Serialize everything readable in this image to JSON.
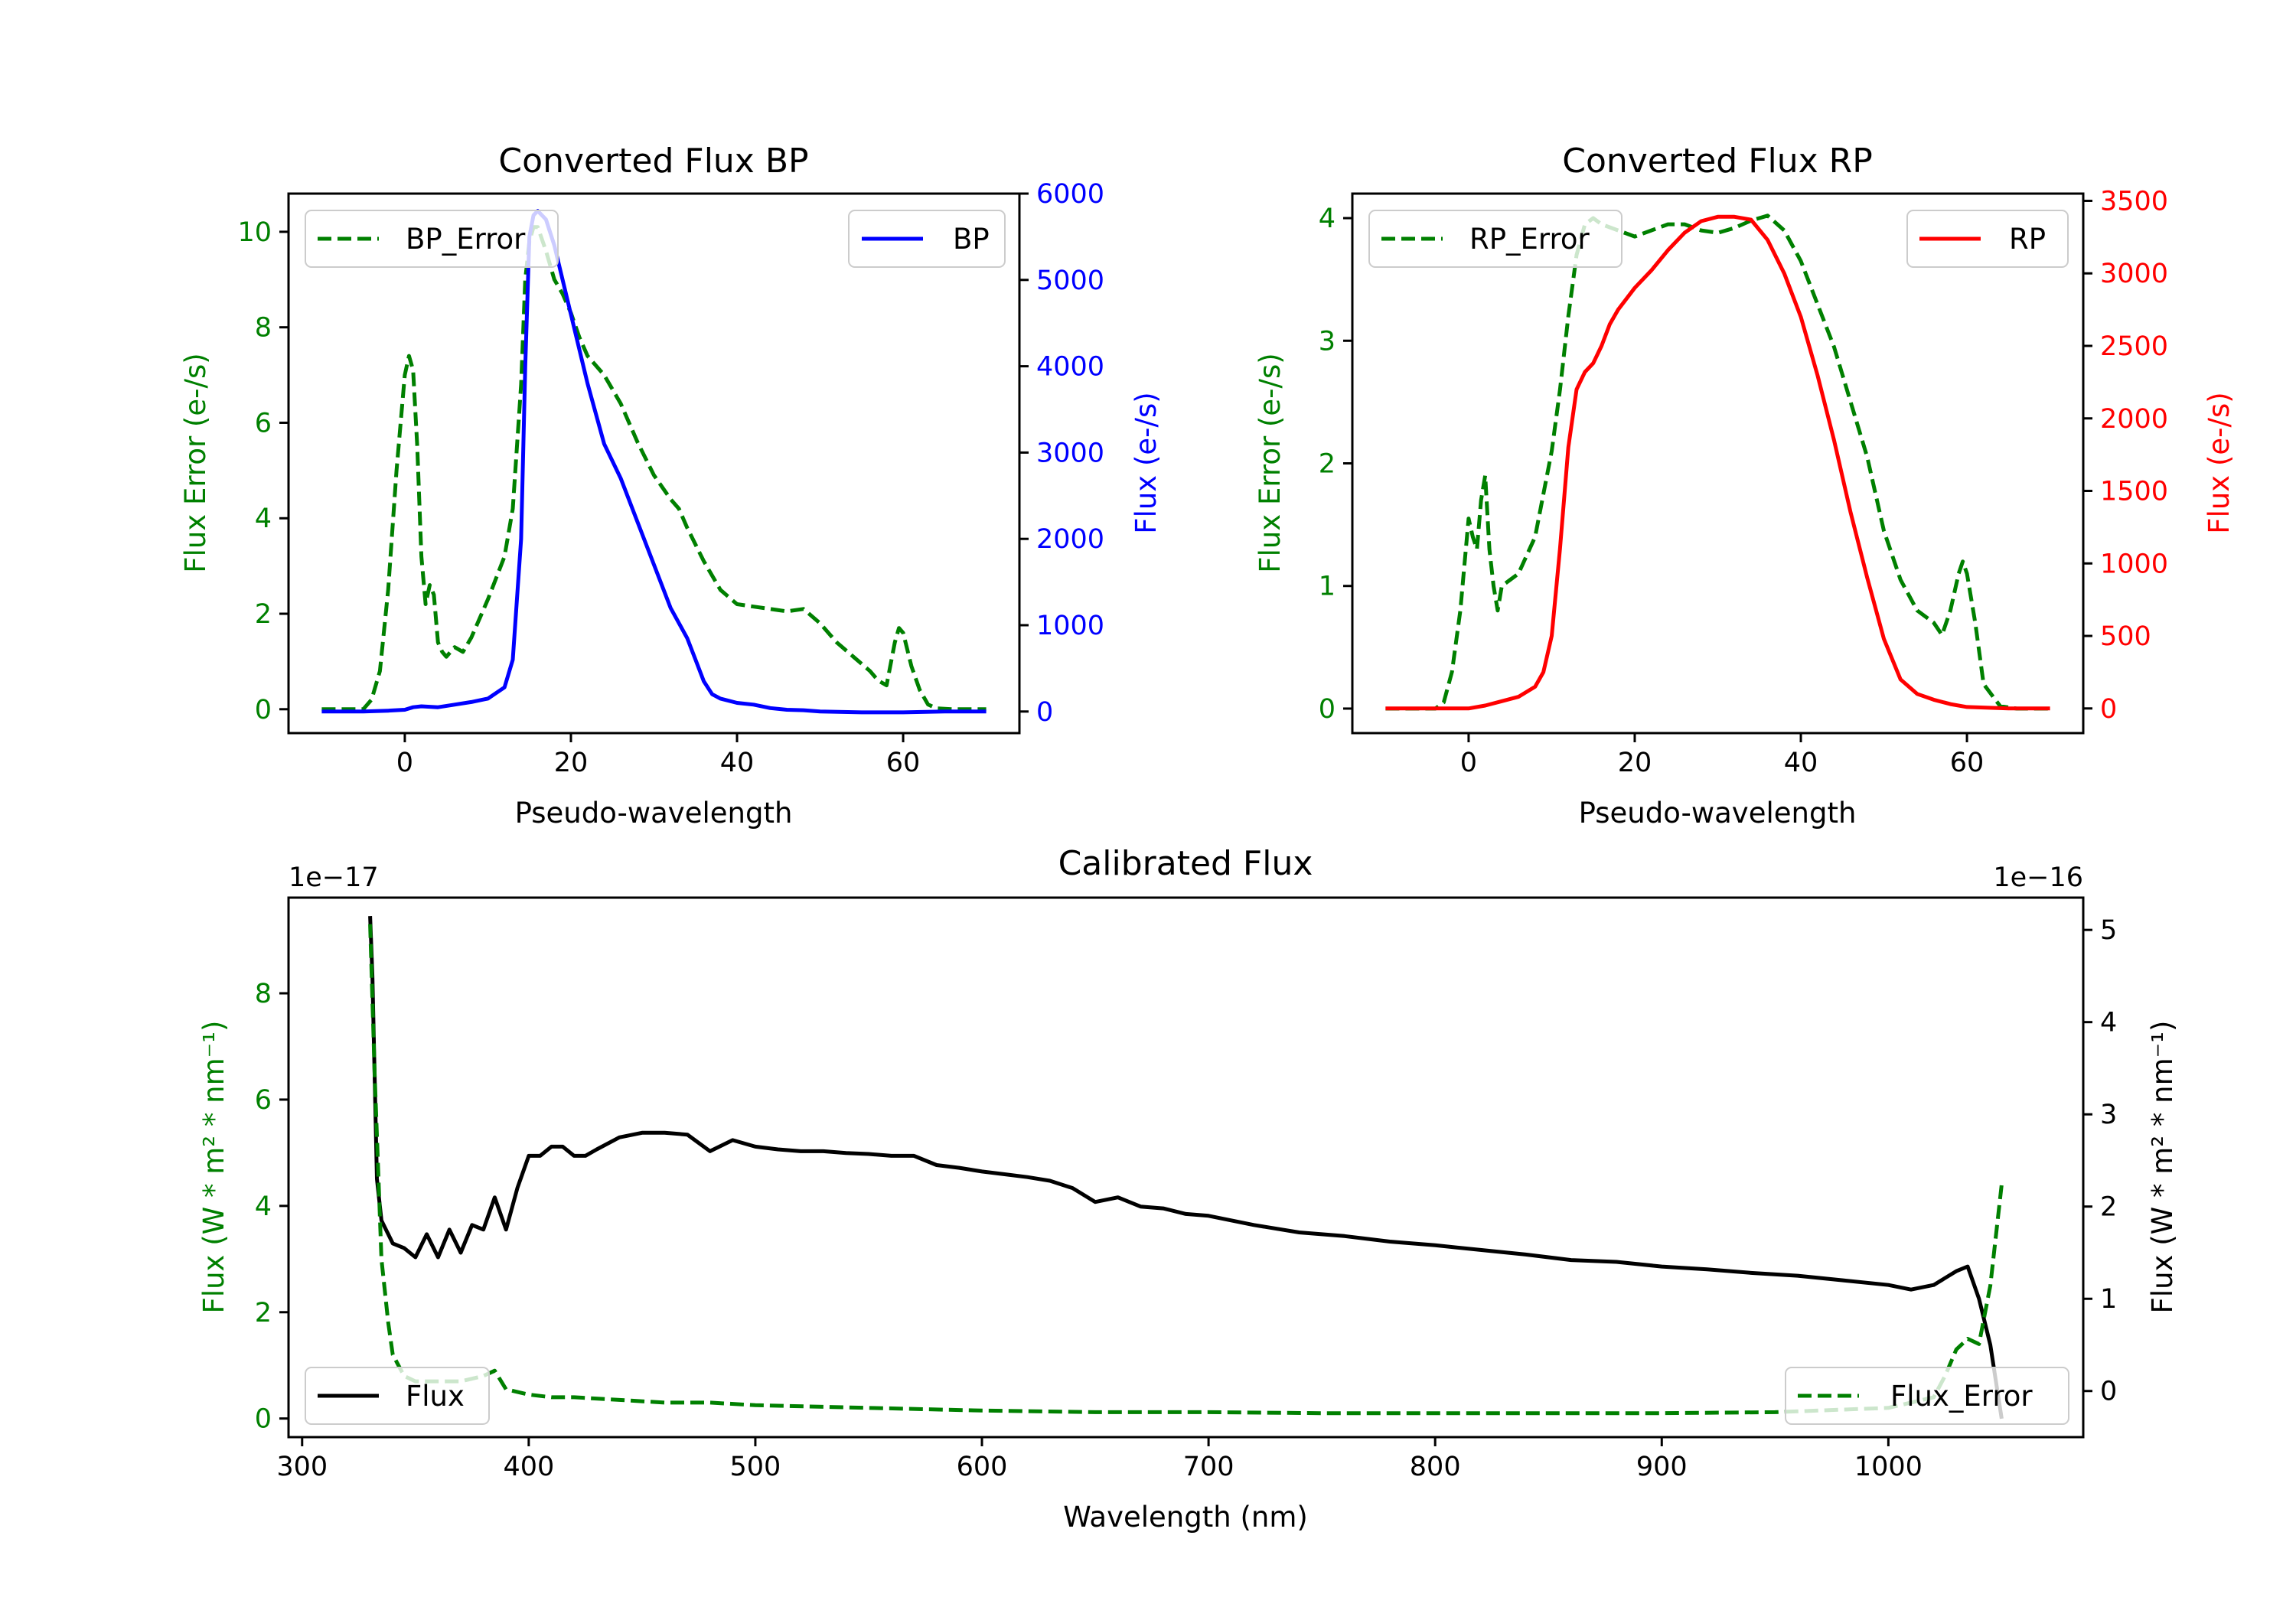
{
  "colors": {
    "error": "#008000",
    "bp": "#0000ff",
    "rp": "#ff0000",
    "flux": "#000000"
  },
  "chart_data": [
    {
      "id": "bp",
      "type": "line",
      "title": "Converted Flux BP",
      "xlabel": "Pseudo-wavelength",
      "ylabel_left": "Flux Error (e-/s)",
      "ylabel_right": "Flux (e-/s)",
      "xlim": [
        -14,
        74
      ],
      "ylim_left": [
        -0.5,
        10.8
      ],
      "ylim_right": [
        -250,
        6000
      ],
      "xticks": [
        0,
        20,
        40,
        60
      ],
      "yticks_left": [
        0,
        2,
        4,
        6,
        8,
        10
      ],
      "yticks_right": [
        0,
        1000,
        2000,
        3000,
        4000,
        5000,
        6000
      ],
      "legend_left": "BP_Error",
      "legend_right": "BP",
      "series": [
        {
          "name": "BP_Error",
          "axis": "left",
          "style": "dashed",
          "x": [
            -10,
            -5,
            -4,
            -3,
            -2,
            -1,
            0,
            0.5,
            1,
            1.5,
            2,
            2.5,
            3,
            3.5,
            4,
            4.5,
            5,
            6,
            7,
            8,
            10,
            12,
            13,
            14,
            14.5,
            15,
            15.5,
            16,
            17,
            18,
            19,
            20,
            21,
            22,
            24,
            26,
            28,
            30,
            32,
            33,
            34,
            36,
            38,
            40,
            42,
            44,
            46,
            48,
            50,
            52,
            54,
            56,
            57,
            58,
            59,
            59.5,
            60,
            61,
            62,
            63,
            64,
            66,
            68,
            70
          ],
          "y": [
            0,
            0,
            0.2,
            0.8,
            2.5,
            5,
            7,
            7.4,
            7.1,
            5.5,
            3.2,
            2.2,
            2.6,
            2.4,
            1.4,
            1.2,
            1.1,
            1.3,
            1.2,
            1.5,
            2.3,
            3.2,
            4.2,
            6.8,
            9,
            9.8,
            10.1,
            10.1,
            9.6,
            9,
            8.7,
            8.3,
            7.8,
            7.4,
            7,
            6.4,
            5.6,
            4.9,
            4.4,
            4.2,
            3.8,
            3.1,
            2.5,
            2.2,
            2.15,
            2.1,
            2.05,
            2.1,
            1.8,
            1.4,
            1.1,
            0.8,
            0.6,
            0.5,
            1.4,
            1.7,
            1.6,
            0.9,
            0.4,
            0.1,
            0.02,
            0,
            0,
            0
          ]
        },
        {
          "name": "BP",
          "axis": "right",
          "style": "solid",
          "x": [
            -10,
            -5,
            -2,
            0,
            1,
            2,
            3,
            4,
            6,
            8,
            10,
            12,
            13,
            14,
            14.5,
            15,
            15.5,
            16,
            17,
            18,
            20,
            22,
            24,
            26,
            28,
            30,
            32,
            34,
            35,
            36,
            37,
            38,
            40,
            42,
            44,
            46,
            48,
            50,
            55,
            60,
            65,
            70
          ],
          "y": [
            0,
            0,
            10,
            20,
            50,
            60,
            55,
            50,
            80,
            110,
            150,
            280,
            600,
            2000,
            4000,
            5500,
            5750,
            5800,
            5700,
            5400,
            4600,
            3800,
            3100,
            2700,
            2200,
            1700,
            1200,
            850,
            600,
            350,
            200,
            150,
            100,
            80,
            40,
            20,
            15,
            0,
            -10,
            -10,
            0,
            0
          ]
        }
      ]
    },
    {
      "id": "rp",
      "type": "line",
      "title": "Converted Flux RP",
      "xlabel": "Pseudo-wavelength",
      "ylabel_left": "Flux Error (e-/s)",
      "ylabel_right": "Flux (e-/s)",
      "xlim": [
        -14,
        74
      ],
      "ylim_left": [
        -0.2,
        4.2
      ],
      "ylim_right": [
        -170,
        3550
      ],
      "xticks": [
        0,
        20,
        40,
        60
      ],
      "yticks_left": [
        0,
        1,
        2,
        3,
        4
      ],
      "yticks_right": [
        0,
        500,
        1000,
        1500,
        2000,
        2500,
        3000,
        3500
      ],
      "legend_left": "RP_Error",
      "legend_right": "RP",
      "series": [
        {
          "name": "RP_Error",
          "axis": "left",
          "style": "dashed",
          "x": [
            -10,
            -4,
            -3,
            -2,
            -1,
            0,
            0.5,
            1,
            1.5,
            2,
            2.5,
            3,
            3.5,
            4,
            5,
            6,
            8,
            10,
            11,
            12,
            13,
            14,
            15,
            16,
            18,
            20,
            22,
            24,
            26,
            28,
            30,
            32,
            34,
            36,
            38,
            40,
            42,
            44,
            46,
            48,
            50,
            52,
            54,
            56,
            57,
            58,
            59,
            59.5,
            60,
            61,
            62,
            64,
            66,
            70
          ],
          "y": [
            0,
            0,
            0.05,
            0.3,
            0.8,
            1.55,
            1.4,
            1.3,
            1.7,
            1.9,
            1.3,
            1,
            0.8,
            1,
            1.05,
            1.1,
            1.4,
            2.1,
            2.6,
            3.2,
            3.7,
            3.95,
            4,
            3.95,
            3.9,
            3.85,
            3.9,
            3.95,
            3.95,
            3.9,
            3.88,
            3.92,
            3.98,
            4.02,
            3.9,
            3.65,
            3.3,
            2.95,
            2.5,
            2.05,
            1.45,
            1.05,
            0.8,
            0.7,
            0.6,
            0.8,
            1.1,
            1.2,
            1.1,
            0.7,
            0.2,
            0.02,
            0,
            0
          ]
        },
        {
          "name": "RP",
          "axis": "right",
          "style": "solid",
          "x": [
            -10,
            -5,
            0,
            2,
            4,
            6,
            8,
            9,
            10,
            11,
            12,
            13,
            14,
            15,
            16,
            17,
            18,
            20,
            22,
            24,
            26,
            28,
            30,
            32,
            34,
            36,
            38,
            40,
            42,
            44,
            46,
            48,
            50,
            52,
            54,
            56,
            58,
            60,
            65,
            70
          ],
          "y": [
            0,
            0,
            0,
            20,
            50,
            80,
            150,
            250,
            500,
            1100,
            1800,
            2200,
            2320,
            2380,
            2500,
            2650,
            2750,
            2900,
            3020,
            3160,
            3280,
            3360,
            3390,
            3390,
            3370,
            3230,
            3000,
            2700,
            2300,
            1850,
            1350,
            900,
            480,
            200,
            100,
            60,
            30,
            10,
            0,
            0
          ]
        }
      ]
    },
    {
      "id": "cal",
      "type": "line",
      "title": "Calibrated Flux",
      "xlabel": "Wavelength (nm)",
      "ylabel_left": "Flux (W * m² * nm⁻¹)",
      "ylabel_right": "Flux (W * m² * nm⁻¹)",
      "offset_left": "1e−17",
      "offset_right": "1e−16",
      "xlim": [
        294,
        1086
      ],
      "ylim_left": [
        -0.35,
        9.8
      ],
      "ylim_right": [
        -0.5,
        5.35
      ],
      "xticks": [
        300,
        400,
        500,
        600,
        700,
        800,
        900,
        1000
      ],
      "yticks_left": [
        0,
        2,
        4,
        6,
        8
      ],
      "yticks_right": [
        0,
        1,
        2,
        3,
        4,
        5
      ],
      "legend_left": "Flux",
      "legend_right": "Flux_Error",
      "series": [
        {
          "name": "Flux",
          "axis": "right",
          "style": "solid",
          "x": [
            330,
            331,
            333,
            335,
            340,
            345,
            350,
            355,
            360,
            365,
            370,
            375,
            380,
            385,
            390,
            395,
            400,
            405,
            410,
            415,
            420,
            425,
            430,
            440,
            450,
            460,
            470,
            480,
            490,
            500,
            510,
            520,
            530,
            540,
            550,
            560,
            570,
            580,
            590,
            600,
            610,
            620,
            630,
            640,
            650,
            660,
            670,
            680,
            690,
            700,
            720,
            740,
            760,
            780,
            800,
            820,
            840,
            860,
            880,
            900,
            920,
            940,
            960,
            980,
            1000,
            1010,
            1020,
            1030,
            1035,
            1040,
            1045,
            1050
          ],
          "y": [
            5.15,
            4.5,
            2.3,
            1.85,
            1.6,
            1.55,
            1.45,
            1.7,
            1.45,
            1.75,
            1.5,
            1.8,
            1.75,
            2.1,
            1.75,
            2.2,
            2.55,
            2.55,
            2.65,
            2.65,
            2.55,
            2.55,
            2.62,
            2.75,
            2.8,
            2.8,
            2.78,
            2.6,
            2.72,
            2.65,
            2.62,
            2.6,
            2.6,
            2.58,
            2.57,
            2.55,
            2.55,
            2.45,
            2.42,
            2.38,
            2.35,
            2.32,
            2.28,
            2.2,
            2.05,
            2.1,
            2.0,
            1.98,
            1.92,
            1.9,
            1.8,
            1.72,
            1.68,
            1.62,
            1.58,
            1.53,
            1.48,
            1.42,
            1.4,
            1.35,
            1.32,
            1.28,
            1.25,
            1.2,
            1.15,
            1.1,
            1.15,
            1.3,
            1.35,
            1.0,
            0.5,
            -0.3
          ]
        },
        {
          "name": "Flux_Error",
          "axis": "left",
          "style": "dashed",
          "x": [
            330,
            332,
            335,
            338,
            340,
            345,
            350,
            360,
            370,
            380,
            385,
            390,
            400,
            410,
            420,
            440,
            460,
            480,
            500,
            550,
            600,
            650,
            700,
            750,
            800,
            850,
            900,
            950,
            1000,
            1020,
            1025,
            1030,
            1035,
            1040,
            1045,
            1050
          ],
          "y": [
            9.3,
            6.5,
            3.0,
            1.8,
            1.2,
            0.8,
            0.7,
            0.7,
            0.7,
            0.8,
            0.9,
            0.55,
            0.45,
            0.4,
            0.4,
            0.35,
            0.3,
            0.3,
            0.25,
            0.2,
            0.15,
            0.12,
            0.12,
            0.1,
            0.1,
            0.1,
            0.1,
            0.12,
            0.2,
            0.4,
            0.8,
            1.3,
            1.5,
            1.4,
            2.5,
            4.4
          ]
        }
      ]
    }
  ]
}
